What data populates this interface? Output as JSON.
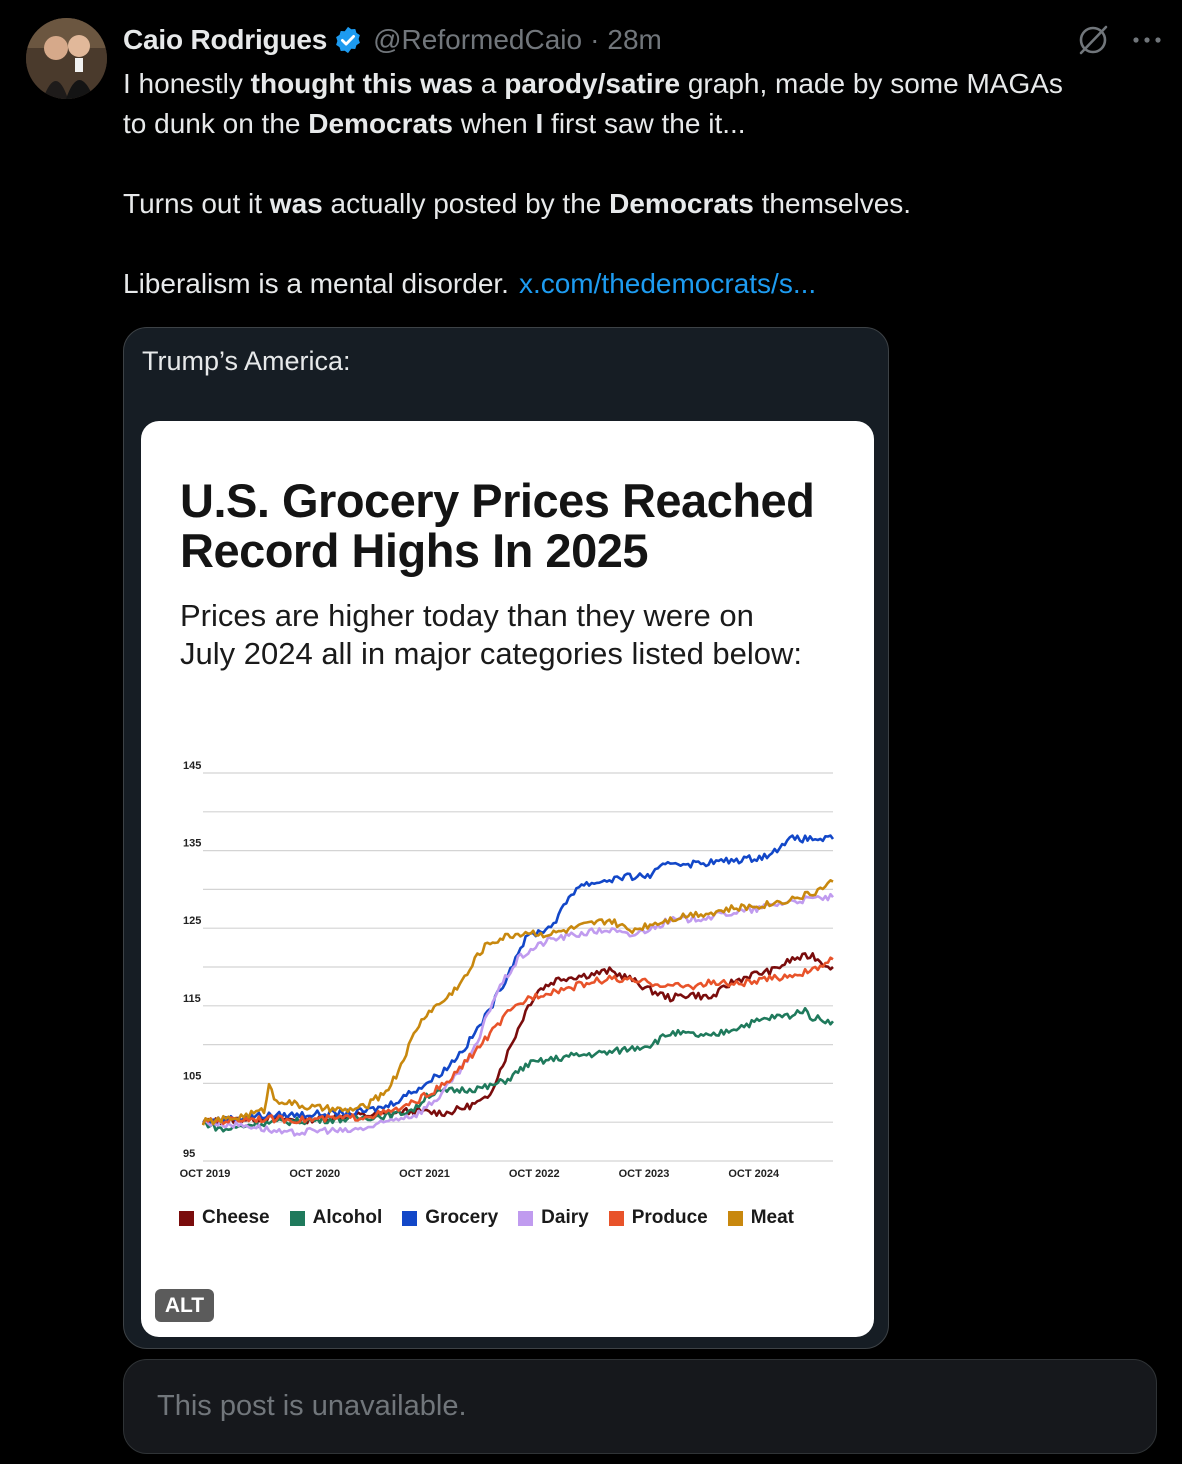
{
  "post": {
    "author_name": "Caio Rodrigues",
    "handle": "@ReformedCaio",
    "separator": "·",
    "time": "28m",
    "verified": true,
    "line1_a": "I honestly ",
    "line1_b": "thought this was",
    "line1_c": " a ",
    "line1_d": "parody/satire",
    "line1_e": " graph, made by some MAGAs",
    "line2_a": "to dunk on the ",
    "line2_b": "Democrats",
    "line2_c": " when ",
    "line2_d": "I",
    "line2_e": " first saw the it...",
    "line3_a": "Turns out it ",
    "line3_b": "was",
    "line3_c": " actually posted by the ",
    "line3_d": "Democrats",
    "line3_e": " themselves.",
    "line4_a": "Liberalism is a mental disorder.",
    "link": "x.com/thedemocrats/s..."
  },
  "quote": {
    "text": "Trump’s America:",
    "alt_label": "ALT"
  },
  "unavailable_text": "This post is unavailable.",
  "icons": {
    "verified": "verified-badge-icon",
    "grok": "grok-icon",
    "more": "more-icon"
  },
  "colors": {
    "link": "#1d9bf0",
    "verified": "#1d9bf0"
  },
  "chart_data": {
    "type": "line",
    "title_line1": "U.S. Grocery Prices Reached",
    "title_line2": "Record Highs In 2025",
    "subtitle_line1": "Prices are higher today than they were on",
    "subtitle_line2": "July 2024 all in major categories listed below:",
    "y_ticks": [
      145,
      135,
      125,
      115,
      105,
      95
    ],
    "ylim": [
      95,
      145
    ],
    "x_ticks": [
      "OCT 2019",
      "OCT 2020",
      "OCT 2021",
      "OCT 2022",
      "OCT 2023",
      "OCT 2024"
    ],
    "grid": true,
    "legend_position": "bottom",
    "series": [
      {
        "name": "Cheese",
        "color": "#7a0c0c",
        "points": [
          [
            0,
            100
          ],
          [
            5,
            100.5
          ],
          [
            10,
            100.3
          ],
          [
            14,
            100.8
          ],
          [
            18,
            101
          ],
          [
            20,
            101.4
          ],
          [
            24,
            101.2
          ],
          [
            26,
            102
          ],
          [
            28,
            103
          ],
          [
            29,
            106
          ],
          [
            30,
            109
          ],
          [
            31,
            112
          ],
          [
            32,
            115
          ],
          [
            33,
            117
          ],
          [
            35,
            118.5
          ],
          [
            38,
            119
          ],
          [
            40,
            119.5
          ],
          [
            42,
            118.5
          ],
          [
            44,
            117
          ],
          [
            46,
            116
          ],
          [
            48,
            116.5
          ],
          [
            50,
            116
          ],
          [
            52,
            118
          ],
          [
            54,
            119
          ],
          [
            56,
            119.5
          ],
          [
            58,
            121
          ],
          [
            60,
            121.5
          ],
          [
            61,
            120.5
          ],
          [
            62,
            120
          ]
        ]
      },
      {
        "name": "Alcohol",
        "color": "#1f7a5c",
        "points": [
          [
            0,
            100
          ],
          [
            2,
            99
          ],
          [
            5,
            99.8
          ],
          [
            10,
            100.2
          ],
          [
            15,
            100.5
          ],
          [
            19,
            101
          ],
          [
            21,
            101.8
          ],
          [
            22,
            103.5
          ],
          [
            24,
            104
          ],
          [
            28,
            104.5
          ],
          [
            30,
            105.5
          ],
          [
            32,
            107.5
          ],
          [
            34,
            108
          ],
          [
            36,
            108.5
          ],
          [
            40,
            109
          ],
          [
            44,
            110
          ],
          [
            46,
            111.5
          ],
          [
            48,
            111.3
          ],
          [
            50,
            111
          ],
          [
            52,
            112
          ],
          [
            54,
            112.8
          ],
          [
            56,
            113.5
          ],
          [
            58,
            113.8
          ],
          [
            59,
            114.5
          ],
          [
            60,
            113.5
          ],
          [
            62,
            113
          ]
        ]
      },
      {
        "name": "Grocery",
        "color": "#1247c8",
        "points": [
          [
            0,
            100
          ],
          [
            5,
            100.8
          ],
          [
            10,
            101
          ],
          [
            15,
            101.2
          ],
          [
            18,
            102
          ],
          [
            20,
            103.5
          ],
          [
            22,
            105
          ],
          [
            24,
            107
          ],
          [
            26,
            110
          ],
          [
            28,
            114
          ],
          [
            30,
            119
          ],
          [
            31,
            122
          ],
          [
            32,
            124
          ],
          [
            34,
            125
          ],
          [
            35,
            126.5
          ],
          [
            36,
            129
          ],
          [
            37,
            130.5
          ],
          [
            39,
            131
          ],
          [
            41,
            131.5
          ],
          [
            44,
            131.8
          ],
          [
            46,
            133.5
          ],
          [
            48,
            133.3
          ],
          [
            50,
            133.5
          ],
          [
            52,
            133.7
          ],
          [
            54,
            134
          ],
          [
            56,
            134.5
          ],
          [
            57,
            136
          ],
          [
            58,
            136.5
          ],
          [
            60,
            136.5
          ],
          [
            62,
            136.5
          ]
        ]
      },
      {
        "name": "Dairy",
        "color": "#c09bef",
        "points": [
          [
            0,
            100
          ],
          [
            5,
            99.5
          ],
          [
            8,
            98.5
          ],
          [
            12,
            99
          ],
          [
            14,
            98.8
          ],
          [
            17,
            99.5
          ],
          [
            19,
            100.5
          ],
          [
            21,
            101
          ],
          [
            23,
            103
          ],
          [
            25,
            106
          ],
          [
            27,
            110
          ],
          [
            28,
            114
          ],
          [
            29,
            117
          ],
          [
            30,
            119
          ],
          [
            31,
            121
          ],
          [
            32,
            122
          ],
          [
            34,
            123.5
          ],
          [
            36,
            124
          ],
          [
            38,
            124.5
          ],
          [
            40,
            124.8
          ],
          [
            42,
            124
          ],
          [
            44,
            125
          ],
          [
            46,
            126
          ],
          [
            48,
            126.2
          ],
          [
            50,
            126.5
          ],
          [
            52,
            127
          ],
          [
            54,
            127.3
          ],
          [
            56,
            128
          ],
          [
            58,
            128.5
          ],
          [
            60,
            128.8
          ],
          [
            62,
            129
          ]
        ]
      },
      {
        "name": "Produce",
        "color": "#e8532a",
        "points": [
          [
            0,
            100
          ],
          [
            5,
            100.5
          ],
          [
            10,
            100.3
          ],
          [
            15,
            100.6
          ],
          [
            18,
            101.2
          ],
          [
            20,
            102
          ],
          [
            22,
            103.5
          ],
          [
            24,
            105
          ],
          [
            26,
            108
          ],
          [
            28,
            111
          ],
          [
            30,
            114
          ],
          [
            32,
            116
          ],
          [
            34,
            116.8
          ],
          [
            36,
            117.3
          ],
          [
            38,
            118
          ],
          [
            40,
            118.5
          ],
          [
            42,
            118.2
          ],
          [
            44,
            118
          ],
          [
            46,
            117.6
          ],
          [
            48,
            117.5
          ],
          [
            50,
            118
          ],
          [
            52,
            117.8
          ],
          [
            54,
            118
          ],
          [
            56,
            118.5
          ],
          [
            58,
            119
          ],
          [
            60,
            119.5
          ],
          [
            62,
            121
          ]
        ]
      },
      {
        "name": "Meat",
        "color": "#c8880e",
        "points": [
          [
            0,
            100
          ],
          [
            3,
            100.5
          ],
          [
            6,
            101.5
          ],
          [
            6.5,
            105
          ],
          [
            7,
            103
          ],
          [
            10,
            102
          ],
          [
            14,
            101.5
          ],
          [
            16,
            102
          ],
          [
            17,
            103
          ],
          [
            18,
            104
          ],
          [
            19,
            106
          ],
          [
            20,
            109
          ],
          [
            21,
            112
          ],
          [
            22,
            114
          ],
          [
            24,
            116
          ],
          [
            26,
            119
          ],
          [
            27,
            121.5
          ],
          [
            28,
            123
          ],
          [
            30,
            124
          ],
          [
            32,
            124.5
          ],
          [
            34,
            124.2
          ],
          [
            36,
            124.8
          ],
          [
            38,
            125.5
          ],
          [
            40,
            126
          ],
          [
            42,
            124.7
          ],
          [
            44,
            125.5
          ],
          [
            46,
            126.2
          ],
          [
            48,
            126.8
          ],
          [
            50,
            127
          ],
          [
            52,
            127.5
          ],
          [
            54,
            127.8
          ],
          [
            56,
            128.2
          ],
          [
            58,
            128.8
          ],
          [
            60,
            129.5
          ],
          [
            62,
            131
          ]
        ]
      }
    ]
  }
}
